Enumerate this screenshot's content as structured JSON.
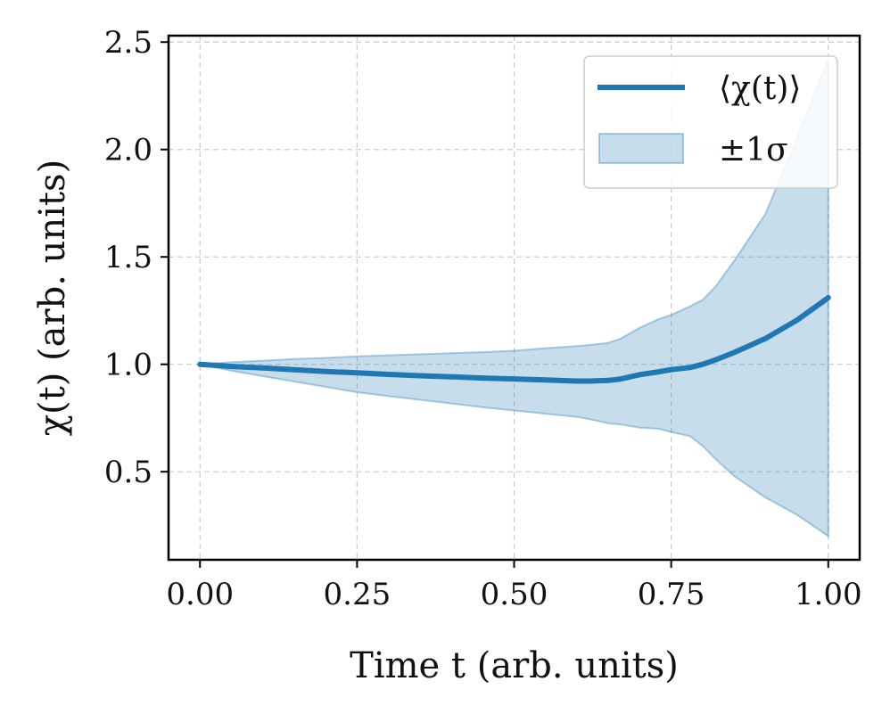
{
  "chart_data": {
    "type": "line",
    "title": "",
    "xlabel": "Time t (arb. units)",
    "ylabel": "χ(t) (arb. units)",
    "xlim": [
      -0.05,
      1.05
    ],
    "ylim": [
      0.09,
      2.53
    ],
    "xticks": [
      0.0,
      0.25,
      0.5,
      0.75,
      1.0
    ],
    "xtick_labels": [
      "0.00",
      "0.25",
      "0.50",
      "0.75",
      "1.00"
    ],
    "yticks": [
      0.5,
      1.0,
      1.5,
      2.0,
      2.5
    ],
    "ytick_labels": [
      "0.5",
      "1.0",
      "1.5",
      "2.0",
      "2.5"
    ],
    "grid": true,
    "legend_position": "top-right",
    "colors": {
      "line": "#1f77b4",
      "band": "#1f77b4",
      "grid": "#cccccc",
      "axes": "#000000"
    },
    "series": [
      {
        "name": "⟨χ(t)⟩",
        "kind": "line",
        "x": [
          0.0,
          0.05,
          0.1,
          0.15,
          0.2,
          0.25,
          0.3,
          0.35,
          0.4,
          0.45,
          0.5,
          0.55,
          0.6,
          0.62,
          0.65,
          0.67,
          0.7,
          0.73,
          0.75,
          0.78,
          0.8,
          0.82,
          0.85,
          0.9,
          0.95,
          1.0
        ],
        "y": [
          1.0,
          0.99,
          0.983,
          0.975,
          0.967,
          0.96,
          0.953,
          0.947,
          0.942,
          0.936,
          0.932,
          0.927,
          0.922,
          0.922,
          0.925,
          0.932,
          0.952,
          0.965,
          0.975,
          0.985,
          1.0,
          1.02,
          1.055,
          1.12,
          1.205,
          1.31
        ]
      },
      {
        "name": "±1σ",
        "kind": "band",
        "x": [
          0.0,
          0.05,
          0.1,
          0.15,
          0.2,
          0.25,
          0.3,
          0.35,
          0.4,
          0.45,
          0.5,
          0.55,
          0.6,
          0.62,
          0.65,
          0.67,
          0.7,
          0.73,
          0.75,
          0.78,
          0.8,
          0.82,
          0.85,
          0.9,
          0.95,
          1.0
        ],
        "lower": [
          1.0,
          0.97,
          0.945,
          0.92,
          0.895,
          0.87,
          0.852,
          0.835,
          0.818,
          0.8,
          0.785,
          0.77,
          0.755,
          0.745,
          0.725,
          0.72,
          0.705,
          0.7,
          0.685,
          0.665,
          0.62,
          0.56,
          0.48,
          0.38,
          0.3,
          0.2
        ],
        "upper": [
          1.0,
          1.01,
          1.017,
          1.025,
          1.03,
          1.037,
          1.042,
          1.047,
          1.052,
          1.057,
          1.063,
          1.075,
          1.085,
          1.09,
          1.1,
          1.12,
          1.17,
          1.21,
          1.23,
          1.27,
          1.3,
          1.36,
          1.48,
          1.7,
          2.05,
          2.42
        ]
      }
    ]
  }
}
